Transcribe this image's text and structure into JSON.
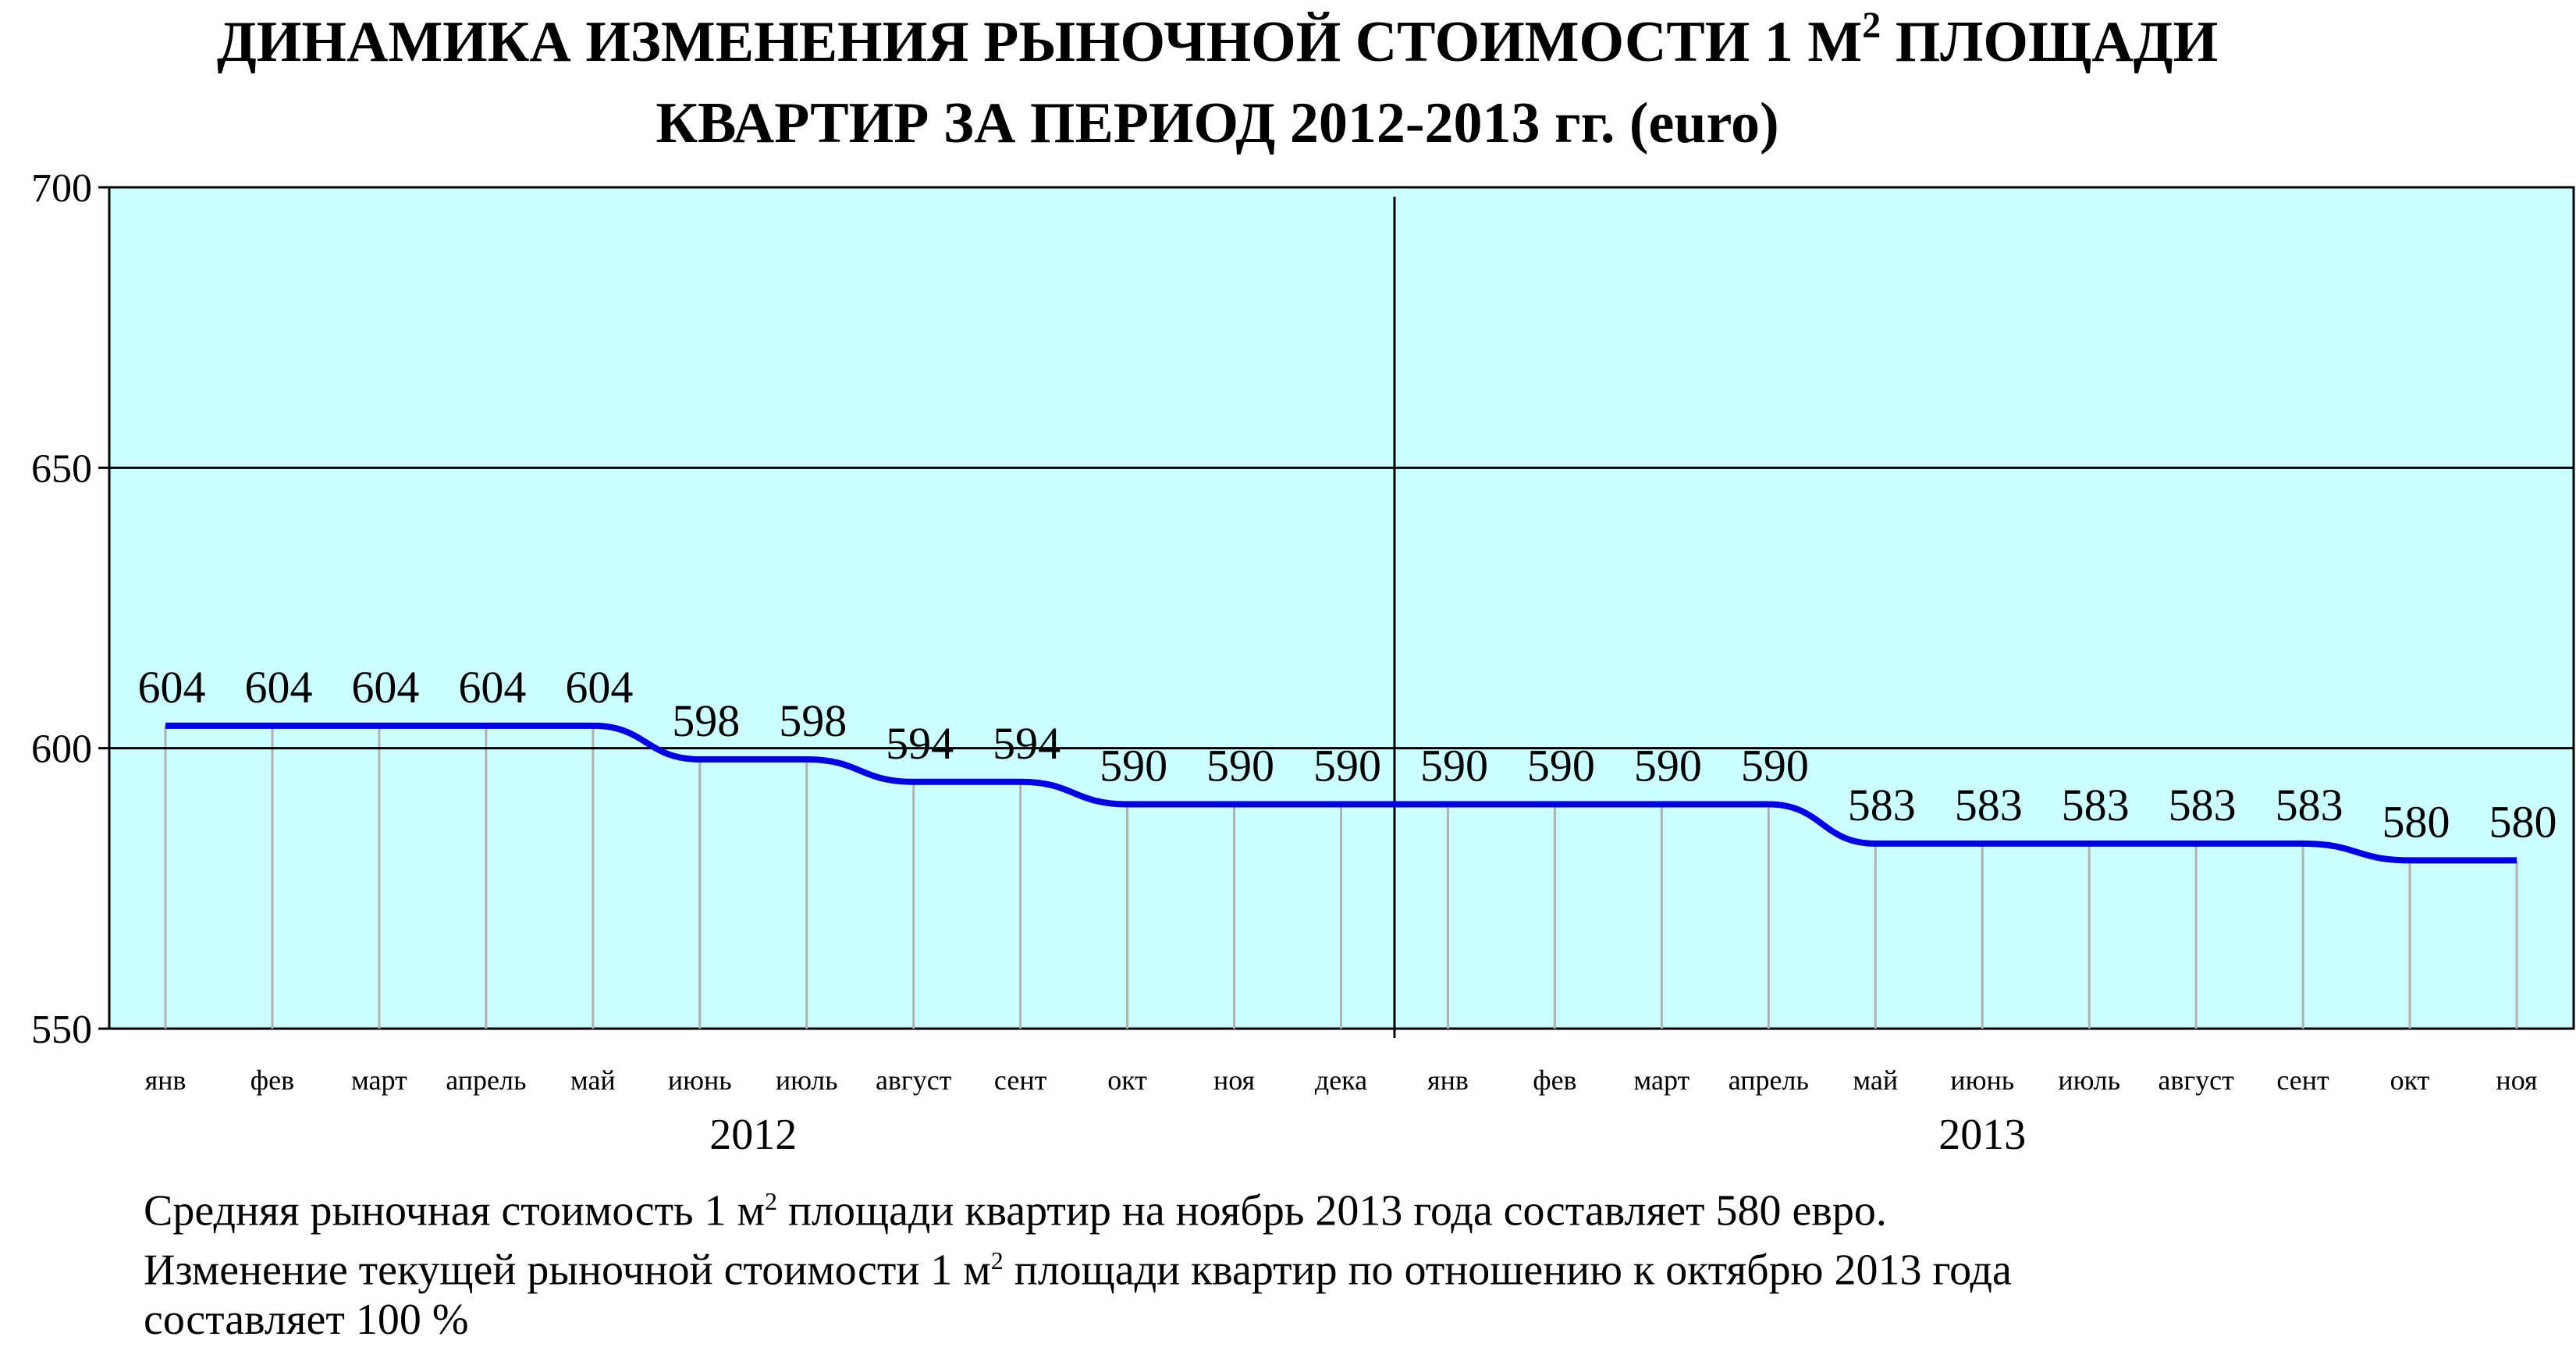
{
  "chart_data": {
    "type": "line",
    "title_line1_pre": "ДИНАМИКА ИЗМЕНЕНИЯ РЫНОЧНОЙ СТОИМОСТИ 1 М",
    "title_line1_sup": "2",
    "title_line1_post": " ПЛОЩАДИ",
    "title_line2": "КВАРТИР ЗА ПЕРИОД 2012-2013 гг. (euro)",
    "ylim": [
      550,
      700
    ],
    "yticks": [
      "550",
      "600",
      "650",
      "700"
    ],
    "categories": [
      "янв",
      "фев",
      "март",
      "апрель",
      "май",
      "июнь",
      "июль",
      "август",
      "сент",
      "окт",
      "ноя",
      "дека",
      "янв",
      "фев",
      "март",
      "апрель",
      "май",
      "июнь",
      "июль",
      "август",
      "сент",
      "окт",
      "ноя"
    ],
    "years": [
      "2012",
      "2013"
    ],
    "series": [
      {
        "values": [
          604,
          604,
          604,
          604,
          604,
          598,
          598,
          594,
          594,
          590,
          590,
          590,
          590,
          590,
          590,
          590,
          583,
          583,
          583,
          583,
          583,
          580,
          580
        ]
      }
    ],
    "data_labels": [
      "604",
      "604",
      "604",
      "604",
      "604",
      "598",
      "598",
      "594",
      "594",
      "590",
      "590",
      "590",
      "590",
      "590",
      "590",
      "590",
      "583",
      "583",
      "583",
      "583",
      "583",
      "580",
      "580"
    ],
    "colors": {
      "plot_bg": "#ccfdff",
      "line": "#0000e0",
      "grid": "#000000",
      "drop_line": "#b0b0b0"
    },
    "grid": true
  },
  "notes": {
    "line1_pre": "Средняя рыночная стоимость 1 м",
    "line1_sup": "2",
    "line1_post": " площади квартир на ноябрь 2013 года составляет 580 евро.",
    "line2_pre": "Изменение текущей рыночной стоимости 1 м",
    "line2_sup": "2",
    "line2_post": " площади квартир по отношению к октябрю 2013 года",
    "line3": "составляет  100  %"
  }
}
